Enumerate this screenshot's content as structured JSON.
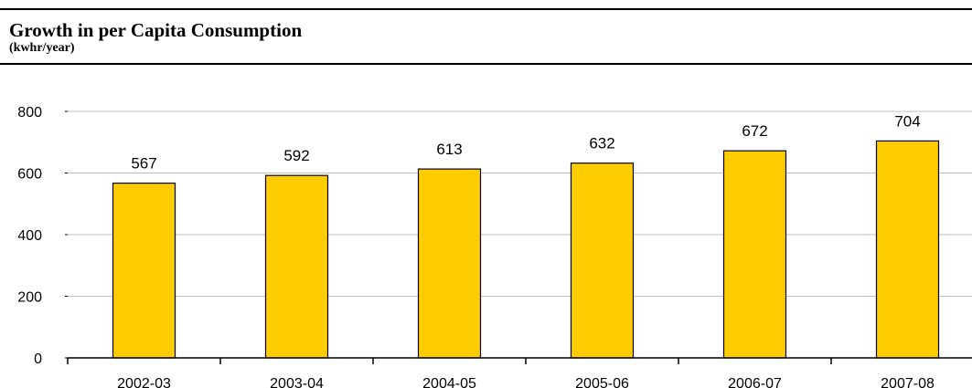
{
  "header": {
    "title": "Growth in per Capita Consumption",
    "subtitle": "(kwhr/year)"
  },
  "colors": {
    "bar_fill": "#FFCC00",
    "bar_stroke": "#000000",
    "grid": "#BFBFBF",
    "axis": "#000000"
  },
  "chart_data": {
    "type": "bar",
    "title": "Growth in per Capita Consumption",
    "subtitle": "(kwhr/year)",
    "categories": [
      "2002-03",
      "2003-04",
      "2004-05",
      "2005-06",
      "2006-07",
      "2007-08"
    ],
    "values": [
      567,
      592,
      613,
      632,
      672,
      704
    ],
    "data_labels": [
      "567",
      "592",
      "613",
      "632",
      "672",
      "704"
    ],
    "xlabel": "",
    "ylabel": "",
    "ylim": [
      0,
      800
    ],
    "yticks": [
      0,
      200,
      400,
      600,
      800
    ],
    "ytick_labels": [
      "0",
      "200",
      "400",
      "600",
      "800"
    ],
    "grid": true,
    "legend": false
  }
}
